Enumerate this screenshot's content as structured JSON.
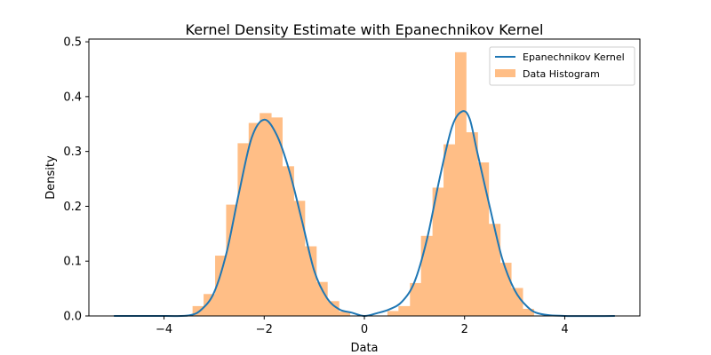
{
  "chart_data": {
    "type": "bar",
    "title": "Kernel Density Estimate with Epanechnikov Kernel",
    "xlabel": "Data",
    "ylabel": "Density",
    "xlim": [
      -5.5,
      5.5
    ],
    "ylim": [
      0,
      0.505
    ],
    "x_ticks": [
      -4,
      -2,
      0,
      2,
      4
    ],
    "x_tick_labels": [
      "−4",
      "−2",
      "0",
      "2",
      "4"
    ],
    "y_ticks": [
      0.0,
      0.1,
      0.2,
      0.3,
      0.4,
      0.5
    ],
    "y_tick_labels": [
      "0.0",
      "0.1",
      "0.2",
      "0.3",
      "0.4",
      "0.5"
    ],
    "legend_position": "top-right",
    "colors": {
      "kde": "#1f77b4",
      "histogram": "#ffbe86"
    },
    "series": [
      {
        "name": "Epanechnikov Kernel",
        "type": "line",
        "points": [
          [
            -5.0,
            0.0
          ],
          [
            -4.0,
            0.0
          ],
          [
            -3.5,
            0.001
          ],
          [
            -3.25,
            0.012
          ],
          [
            -3.0,
            0.043
          ],
          [
            -2.75,
            0.116
          ],
          [
            -2.5,
            0.226
          ],
          [
            -2.25,
            0.325
          ],
          [
            -2.0,
            0.358
          ],
          [
            -1.75,
            0.33
          ],
          [
            -1.5,
            0.265
          ],
          [
            -1.25,
            0.175
          ],
          [
            -1.0,
            0.082
          ],
          [
            -0.75,
            0.033
          ],
          [
            -0.5,
            0.012
          ],
          [
            -0.25,
            0.006
          ],
          [
            0.0,
            0.0
          ],
          [
            0.25,
            0.005
          ],
          [
            0.5,
            0.012
          ],
          [
            0.75,
            0.026
          ],
          [
            1.0,
            0.062
          ],
          [
            1.25,
            0.14
          ],
          [
            1.5,
            0.25
          ],
          [
            1.75,
            0.345
          ],
          [
            1.95,
            0.373
          ],
          [
            2.1,
            0.36
          ],
          [
            2.25,
            0.3
          ],
          [
            2.5,
            0.2
          ],
          [
            2.75,
            0.105
          ],
          [
            3.0,
            0.047
          ],
          [
            3.25,
            0.017
          ],
          [
            3.5,
            0.004
          ],
          [
            4.0,
            0.0
          ],
          [
            5.0,
            0.0
          ]
        ]
      },
      {
        "name": "Data Histogram",
        "type": "histogram",
        "bins": [
          [
            -3.43,
            -3.21,
            0.018
          ],
          [
            -3.21,
            -2.98,
            0.04
          ],
          [
            -2.98,
            -2.76,
            0.11
          ],
          [
            -2.76,
            -2.53,
            0.203
          ],
          [
            -2.53,
            -2.31,
            0.315
          ],
          [
            -2.31,
            -2.09,
            0.352
          ],
          [
            -2.09,
            -1.86,
            0.37
          ],
          [
            -1.86,
            -1.64,
            0.362
          ],
          [
            -1.64,
            -1.41,
            0.273
          ],
          [
            -1.41,
            -1.19,
            0.21
          ],
          [
            -1.19,
            -0.96,
            0.127
          ],
          [
            -0.96,
            -0.74,
            0.062
          ],
          [
            -0.74,
            -0.51,
            0.027
          ],
          [
            -0.51,
            -0.29,
            0.008
          ],
          [
            0.46,
            0.68,
            0.009
          ],
          [
            0.68,
            0.91,
            0.018
          ],
          [
            0.91,
            1.13,
            0.06
          ],
          [
            1.13,
            1.36,
            0.146
          ],
          [
            1.36,
            1.58,
            0.234
          ],
          [
            1.58,
            1.81,
            0.313
          ],
          [
            1.81,
            2.03,
            0.481
          ],
          [
            2.03,
            2.26,
            0.335
          ],
          [
            2.26,
            2.48,
            0.28
          ],
          [
            2.48,
            2.71,
            0.168
          ],
          [
            2.71,
            2.93,
            0.097
          ],
          [
            2.93,
            3.16,
            0.051
          ],
          [
            3.16,
            3.38,
            0.013
          ]
        ]
      }
    ]
  }
}
